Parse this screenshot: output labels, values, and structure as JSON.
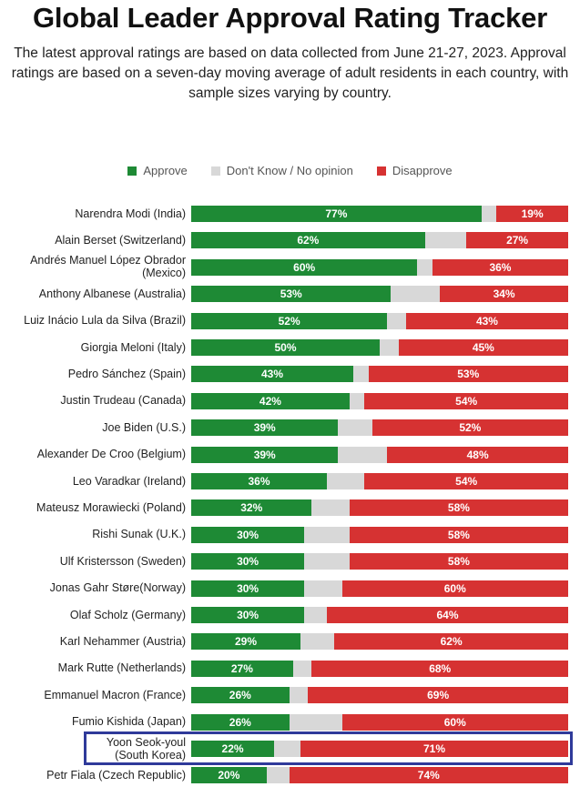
{
  "title": "Global Leader Approval Rating Tracker",
  "subtitle": "The latest approval ratings are based on data collected from June 21-27, 2023. Approval ratings are based on a seven-day moving average of adult residents in each country, with sample sizes varying by country.",
  "colors": {
    "approve": "#1e8a35",
    "dont_know": "#d8d8d8",
    "disapprove": "#d63232",
    "highlight": "#2f3a9a"
  },
  "chart_data": {
    "type": "bar",
    "orientation": "horizontal",
    "stacked": true,
    "legend": [
      {
        "key": "approve",
        "label": "Approve"
      },
      {
        "key": "dont_know",
        "label": "Don't Know / No opinion"
      },
      {
        "key": "disapprove",
        "label": "Disapprove"
      }
    ],
    "legend_position": "top-center",
    "highlighted_row": "Yoon Seok-youl (South Korea)",
    "rows": [
      {
        "leader": "Narendra Modi (India)",
        "approve": 77,
        "disapprove": 19
      },
      {
        "leader": "Alain Berset (Switzerland)",
        "approve": 62,
        "disapprove": 27
      },
      {
        "leader": "Andrés Manuel López Obrador (Mexico)",
        "approve": 60,
        "disapprove": 36
      },
      {
        "leader": "Anthony Albanese (Australia)",
        "approve": 53,
        "disapprove": 34
      },
      {
        "leader": "Luiz Inácio Lula da Silva (Brazil)",
        "approve": 52,
        "disapprove": 43
      },
      {
        "leader": "Giorgia Meloni (Italy)",
        "approve": 50,
        "disapprove": 45
      },
      {
        "leader": "Pedro Sánchez (Spain)",
        "approve": 43,
        "disapprove": 53
      },
      {
        "leader": "Justin Trudeau (Canada)",
        "approve": 42,
        "disapprove": 54
      },
      {
        "leader": "Joe Biden (U.S.)",
        "approve": 39,
        "disapprove": 52
      },
      {
        "leader": "Alexander De Croo (Belgium)",
        "approve": 39,
        "disapprove": 48
      },
      {
        "leader": "Leo Varadkar (Ireland)",
        "approve": 36,
        "disapprove": 54
      },
      {
        "leader": "Mateusz Morawiecki (Poland)",
        "approve": 32,
        "disapprove": 58
      },
      {
        "leader": "Rishi Sunak (U.K.)",
        "approve": 30,
        "disapprove": 58
      },
      {
        "leader": "Ulf Kristersson (Sweden)",
        "approve": 30,
        "disapprove": 58
      },
      {
        "leader": "Jonas Gahr Støre(Norway)",
        "approve": 30,
        "disapprove": 60
      },
      {
        "leader": "Olaf Scholz (Germany)",
        "approve": 30,
        "disapprove": 64
      },
      {
        "leader": "Karl Nehammer (Austria)",
        "approve": 29,
        "disapprove": 62
      },
      {
        "leader": "Mark Rutte (Netherlands)",
        "approve": 27,
        "disapprove": 68
      },
      {
        "leader": "Emmanuel Macron (France)",
        "approve": 26,
        "disapprove": 69
      },
      {
        "leader": "Fumio Kishida (Japan)",
        "approve": 26,
        "disapprove": 60
      },
      {
        "leader": "Yoon Seok-youl (South Korea)",
        "approve": 22,
        "disapprove": 71
      },
      {
        "leader": "Petr Fiala (Czech Republic)",
        "approve": 20,
        "disapprove": 74
      }
    ]
  }
}
